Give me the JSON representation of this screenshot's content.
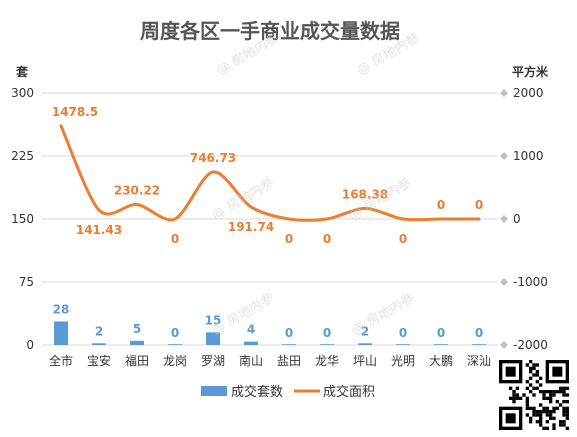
{
  "chart_data": {
    "type": "bar+line",
    "title": "周度各区一手商业成交量数据",
    "categories": [
      "全市",
      "宝安",
      "福田",
      "龙岗",
      "罗湖",
      "南山",
      "盐田",
      "龙华",
      "坪山",
      "光明",
      "大鹏",
      "深汕"
    ],
    "series": [
      {
        "name": "成交套数",
        "type": "bar",
        "axis": "left",
        "values": [
          28,
          2,
          5,
          0,
          15,
          4,
          0,
          0,
          2,
          0,
          0,
          0
        ]
      },
      {
        "name": "成交面积",
        "type": "line",
        "axis": "right",
        "values": [
          1478.5,
          141.43,
          230.22,
          0,
          746.73,
          191.74,
          0,
          0,
          168.38,
          0,
          0,
          0
        ]
      }
    ],
    "left_axis": {
      "unit": "套",
      "ticks": [
        0,
        75,
        150,
        225,
        300
      ],
      "ylim": [
        0,
        300
      ]
    },
    "right_axis": {
      "unit": "平方米",
      "ticks": [
        -2000,
        -1000,
        0,
        1000,
        2000
      ],
      "ylim": [
        -2000,
        2000
      ]
    },
    "legend_position": "bottom",
    "colors": {
      "bar": "#5b9bd5",
      "line": "#ed7d31",
      "grid": "#d9d9d9",
      "title": "#555555"
    }
  },
  "watermark": "房地内参"
}
